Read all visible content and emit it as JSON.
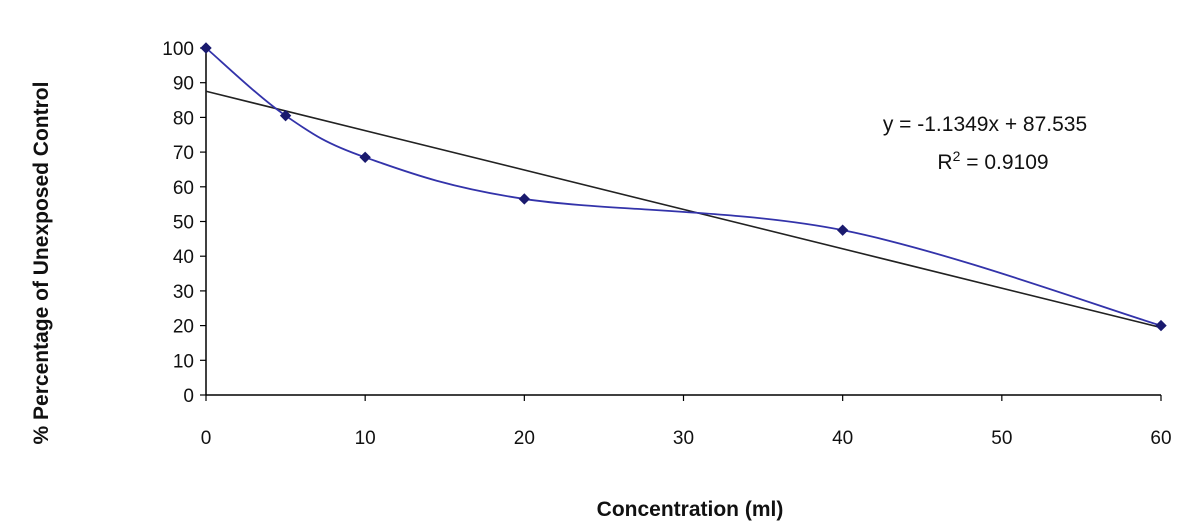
{
  "chart_data": {
    "type": "line",
    "title": "",
    "xlabel": "Concentration (ml)",
    "ylabel": "% Percentage of Unexposed Control",
    "xlim": [
      0,
      60
    ],
    "ylim": [
      0,
      100
    ],
    "x_ticks": [
      0,
      10,
      20,
      30,
      40,
      50,
      60
    ],
    "y_ticks": [
      0,
      10,
      20,
      30,
      40,
      50,
      60,
      70,
      80,
      90,
      100
    ],
    "grid": false,
    "legend": "none",
    "series": [
      {
        "color": "#3333aa",
        "marker": "diamond",
        "points": [
          {
            "x": 0,
            "y": 100
          },
          {
            "x": 5,
            "y": 80.5
          },
          {
            "x": 10,
            "y": 68.5
          },
          {
            "x": 20,
            "y": 56.5
          },
          {
            "x": 40,
            "y": 47.5
          },
          {
            "x": 60,
            "y": 20
          }
        ]
      }
    ],
    "trendline": {
      "type": "linear",
      "slope": -1.1349,
      "intercept": 87.535,
      "color": "#222222"
    },
    "annotations": {
      "equation": "y = -1.1349x + 87.535",
      "r_squared_prefix": "R",
      "r_squared_exponent": "2",
      "r_squared_value": " = 0.9109"
    }
  }
}
